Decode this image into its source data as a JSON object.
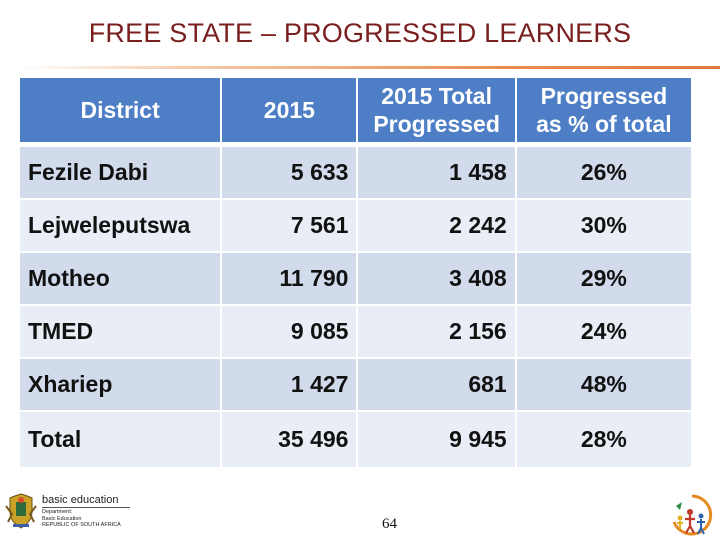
{
  "title": "FREE STATE – PROGRESSED LEARNERS",
  "table": {
    "headers": {
      "district": "District",
      "year": "2015",
      "total_progressed": "2015 Total Progressed",
      "pct_total": "Progressed as % of total"
    },
    "rows": [
      {
        "district": "Fezile Dabi",
        "year": "5 633",
        "total_progressed": "1 458",
        "pct_total": "26%"
      },
      {
        "district": "Lejweleputswa",
        "year": "7 561",
        "total_progressed": "2 242",
        "pct_total": "30%"
      },
      {
        "district": "Motheo",
        "year": "11 790",
        "total_progressed": "3 408",
        "pct_total": "29%"
      },
      {
        "district": "TMED",
        "year": "9 085",
        "total_progressed": "2 156",
        "pct_total": "24%"
      },
      {
        "district": "Xhariep",
        "year": "1 427",
        "total_progressed": "681",
        "pct_total": "48%"
      },
      {
        "district": "Total",
        "year": "35 496",
        "total_progressed": "9 945",
        "pct_total": "28%"
      }
    ]
  },
  "footer": {
    "logo_main": "basic education",
    "logo_sub": [
      "Department:",
      "Basic Education",
      "REPUBLIC OF SOUTH AFRICA"
    ],
    "page_number": "64"
  },
  "colors": {
    "title": "#7a1f1f",
    "header_bg": "#4e7fc6",
    "row_dark": "#d1dbec",
    "row_light": "#e9eef6",
    "accent_rule": "#e07a3a"
  },
  "icons": {
    "crest": "coat-of-arms-icon",
    "anniversary": "anniversary-logo-icon"
  }
}
